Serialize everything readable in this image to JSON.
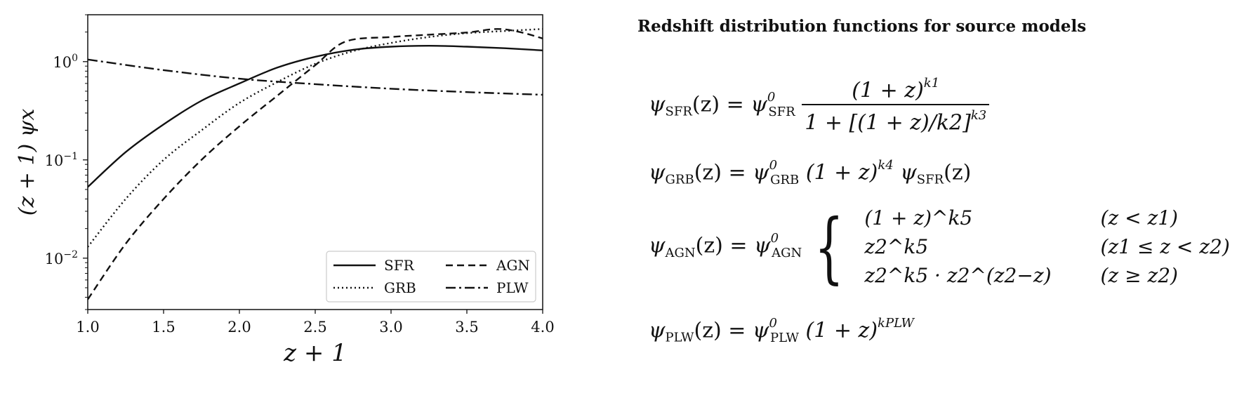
{
  "chart_data": {
    "type": "line",
    "title": "",
    "xlabel": "z + 1",
    "ylabel": "(z + 1) ψx",
    "xscale": "linear",
    "yscale": "log",
    "xlim": [
      1.0,
      4.0
    ],
    "ylim": [
      0.003,
      3.0
    ],
    "xticks": [
      "1.0",
      "1.5",
      "2.0",
      "2.5",
      "3.0",
      "3.5",
      "4.0"
    ],
    "yticks": [
      "10^-2",
      "10^-1",
      "10^0"
    ],
    "grid": false,
    "legend": {
      "placement": "lower-right",
      "columns": 2
    },
    "series": [
      {
        "name": "SFR",
        "style": "solid",
        "x": [
          1.0,
          1.25,
          1.5,
          1.75,
          2.0,
          2.25,
          2.5,
          2.75,
          3.0,
          3.25,
          3.5,
          3.75,
          4.0
        ],
        "y": [
          0.053,
          0.12,
          0.23,
          0.4,
          0.6,
          0.87,
          1.12,
          1.32,
          1.42,
          1.45,
          1.42,
          1.37,
          1.3
        ]
      },
      {
        "name": "GRB",
        "style": "dotted",
        "x": [
          1.0,
          1.25,
          1.5,
          1.75,
          2.0,
          2.25,
          2.5,
          2.75,
          3.0,
          3.25,
          3.5,
          3.75,
          4.0
        ],
        "y": [
          0.013,
          0.04,
          0.1,
          0.2,
          0.38,
          0.62,
          0.95,
          1.28,
          1.55,
          1.78,
          1.95,
          2.05,
          2.15
        ]
      },
      {
        "name": "AGN",
        "style": "dashed",
        "x": [
          1.0,
          1.25,
          1.5,
          1.75,
          2.0,
          2.25,
          2.5,
          2.7,
          3.0,
          3.25,
          3.5,
          3.7,
          3.85,
          4.0
        ],
        "y": [
          0.0038,
          0.014,
          0.04,
          0.1,
          0.22,
          0.45,
          0.92,
          1.6,
          1.78,
          1.88,
          1.98,
          2.15,
          2.0,
          1.72
        ]
      },
      {
        "name": "PLW",
        "style": "dashdot",
        "x": [
          1.0,
          1.5,
          2.0,
          2.5,
          3.0,
          3.5,
          4.0
        ],
        "y": [
          1.05,
          0.82,
          0.67,
          0.59,
          0.53,
          0.49,
          0.46
        ]
      }
    ]
  },
  "panel": {
    "title": "Redshift distribution functions for source models"
  },
  "equations": {
    "sfr": {
      "lhs_fn": "ψ",
      "lhs_sub": "SFR",
      "lhs_arg": "(z) = ",
      "rhs_fn": "ψ",
      "rhs_sup": "0",
      "rhs_sub": "SFR",
      "num_base": "(1 + z)",
      "num_exp": "k1",
      "den_base": "1 + [(1 + z)/k2]",
      "den_exp": "k3"
    },
    "grb": {
      "lhs_fn": "ψ",
      "lhs_sub": "GRB",
      "lhs_arg": "(z) = ",
      "rhs_fn": "ψ",
      "rhs_sup": "0",
      "rhs_sub": "GRB",
      "mid_base": "(1 + z)",
      "mid_exp": "k4",
      "tail_fn": "ψ",
      "tail_sub": "SFR",
      "tail_arg": "(z)"
    },
    "agn": {
      "lhs_fn": "ψ",
      "lhs_sub": "AGN",
      "lhs_arg": "(z) = ",
      "rhs_fn": "ψ",
      "rhs_sup": "0",
      "rhs_sub": "AGN",
      "cases": [
        {
          "expr": "(1 + z)^k5",
          "cond": "(z < z1)"
        },
        {
          "expr": "z2^k5",
          "cond": "(z1 ≤ z < z2)"
        },
        {
          "expr": "z2^k5 · z2^(z2−z)",
          "cond": "(z ≥ z2)"
        }
      ]
    },
    "plw": {
      "lhs_fn": "ψ",
      "lhs_sub": "PLW",
      "lhs_arg": "(z) = ",
      "rhs_fn": "ψ",
      "rhs_sup": "0",
      "rhs_sub": "PLW",
      "mid_base": "(1 + z)",
      "mid_exp": "kPLW"
    }
  }
}
